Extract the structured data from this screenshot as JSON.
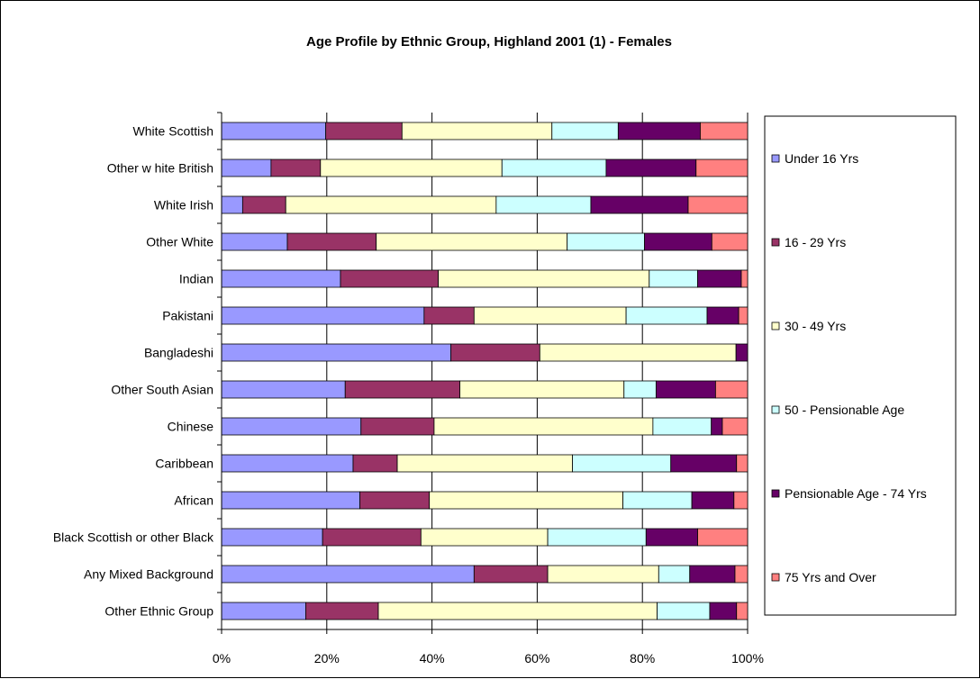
{
  "chart_data": {
    "type": "bar",
    "orientation": "horizontal",
    "stacked": "percent",
    "title": "Age Profile by Ethnic Group, Highland 2001 (1) - Females",
    "categories": [
      "White Scottish",
      "Other w hite British",
      "White Irish",
      "Other White",
      "Indian",
      "Pakistani",
      "Bangladeshi",
      "Other South Asian",
      "Chinese",
      "Caribbean",
      "African",
      "Black Scottish or other Black",
      "Any Mixed Background",
      "Other Ethnic Group"
    ],
    "series": [
      {
        "name": "Under 16 Yrs",
        "color": "#9999ff",
        "values": [
          19.8,
          9.4,
          4.0,
          12.5,
          22.6,
          38.5,
          43.6,
          23.5,
          26.5,
          25.0,
          26.3,
          19.2,
          48.0,
          16.0
        ]
      },
      {
        "name": "16 - 29 Yrs",
        "color": "#993366",
        "values": [
          14.5,
          9.4,
          8.2,
          16.9,
          18.6,
          9.5,
          16.9,
          21.8,
          13.9,
          8.4,
          13.2,
          18.7,
          14.0,
          13.8
        ]
      },
      {
        "name": "30 - 49 Yrs",
        "color": "#ffffcc",
        "values": [
          28.5,
          34.5,
          40.0,
          36.3,
          40.1,
          28.9,
          37.3,
          31.2,
          41.6,
          33.3,
          36.8,
          24.1,
          21.1,
          53.0
        ]
      },
      {
        "name": "50 - Pensionable Age",
        "color": "#ccffff",
        "values": [
          12.6,
          19.8,
          18.0,
          14.7,
          9.2,
          15.4,
          0,
          6.1,
          11.1,
          18.7,
          13.1,
          18.7,
          5.9,
          10.0
        ]
      },
      {
        "name": "Pensionable Age - 74 Yrs",
        "color": "#660066",
        "values": [
          15.6,
          17.1,
          18.5,
          12.8,
          8.3,
          6.0,
          2.2,
          11.3,
          2.1,
          12.5,
          8.0,
          9.8,
          8.6,
          5.1
        ]
      },
      {
        "name": "75 Yrs and Over",
        "color": "#ff8080",
        "values": [
          9.0,
          9.8,
          11.3,
          6.8,
          1.2,
          1.7,
          0,
          6.1,
          4.8,
          2.1,
          2.6,
          9.5,
          2.4,
          2.1
        ]
      }
    ],
    "xlim": [
      0,
      100
    ],
    "x_ticks": [
      "0%",
      "20%",
      "40%",
      "60%",
      "80%",
      "100%"
    ],
    "grid": "vertical",
    "legend_position": "right"
  }
}
